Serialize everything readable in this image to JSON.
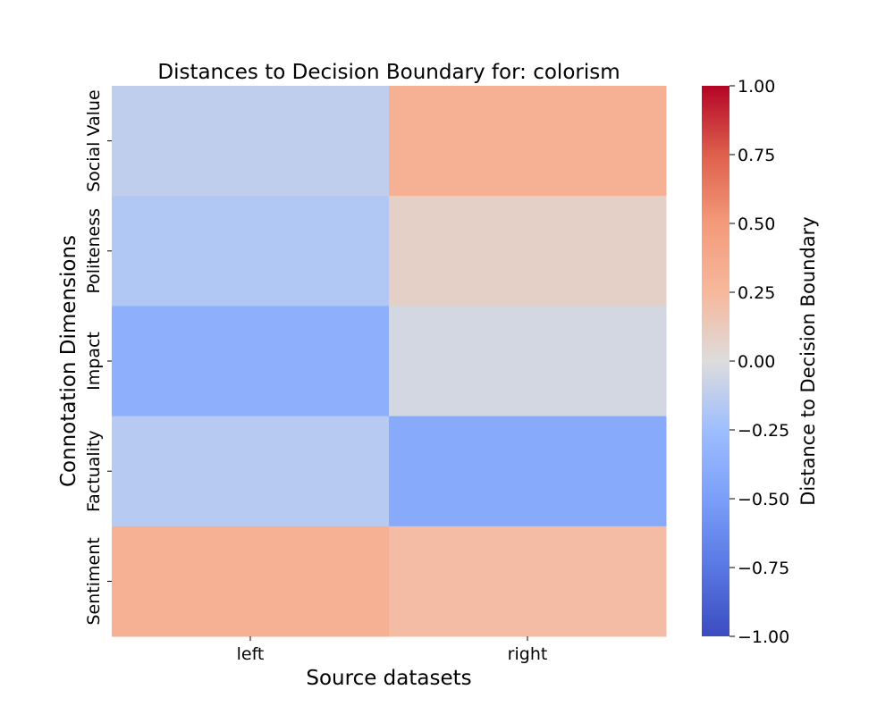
{
  "chart_data": {
    "type": "heatmap",
    "title": "Distances to Decision Boundary for: colorism",
    "xlabel": "Source datasets",
    "ylabel": "Connotation Dimensions",
    "x_categories": [
      "left",
      "right"
    ],
    "y_categories": [
      "Social Value",
      "Politeness",
      "Impact",
      "Factuality",
      "Sentiment"
    ],
    "values": [
      [
        -0.12,
        0.31
      ],
      [
        -0.17,
        0.08
      ],
      [
        -0.37,
        -0.04
      ],
      [
        -0.15,
        -0.41
      ],
      [
        0.31,
        0.22
      ]
    ],
    "colorbar": {
      "label": "Distance to Decision Boundary",
      "range": [
        -1.0,
        1.0
      ],
      "ticks": [
        "1.00",
        "0.75",
        "0.50",
        "0.25",
        "0.00",
        "−0.25",
        "−0.50",
        "−0.75",
        "−1.00"
      ],
      "colormap": "coolwarm"
    }
  }
}
